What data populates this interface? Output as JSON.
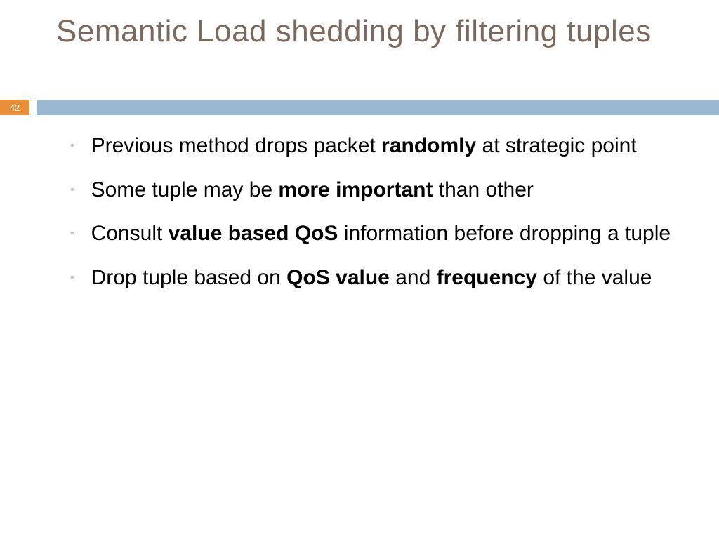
{
  "slide": {
    "title": "Semantic Load shedding by filtering tuples",
    "page_number": "42",
    "colors": {
      "title_color": "#7a6a5d",
      "badge_bg": "#e98f3b",
      "bar_bg": "#9bb8d3",
      "bullet_dot": "#c9b8a8",
      "text_color": "#000000",
      "background": "#ffffff"
    },
    "bullets": [
      {
        "html": "Previous method drops packet <b>randomly</b> at strategic point"
      },
      {
        "html": "Some tuple may be <b>more important</b> than other"
      },
      {
        "html": "Consult <b>value based QoS</b> information before dropping a tuple"
      },
      {
        "html": "Drop tuple based on <b>QoS value</b> and <b>frequency</b> of the value"
      }
    ]
  }
}
